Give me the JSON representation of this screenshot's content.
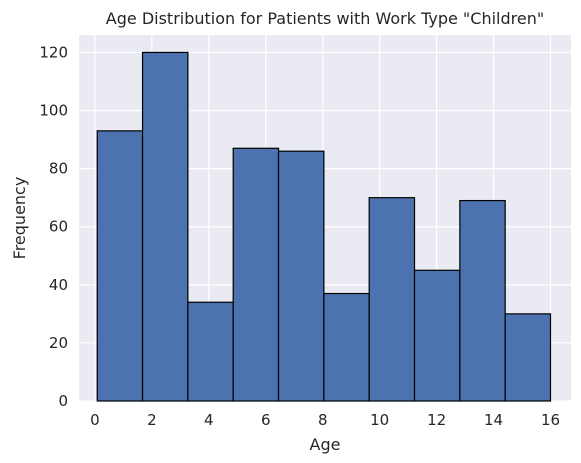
{
  "chart_data": {
    "type": "bar",
    "title": "Age Distribution for Patients with Work Type \"Children\"",
    "xlabel": "Age",
    "ylabel": "Frequency",
    "xlim": [
      -0.56,
      16.72
    ],
    "ylim": [
      0,
      126
    ],
    "xticks": [
      0,
      2,
      4,
      6,
      8,
      10,
      12,
      14,
      16
    ],
    "yticks": [
      0,
      20,
      40,
      60,
      80,
      100,
      120
    ],
    "bin_edges": [
      0.08,
      1.672,
      3.264,
      4.856,
      6.448,
      8.04,
      9.632,
      11.224,
      12.816,
      14.408,
      16.0
    ],
    "values": [
      93,
      120,
      34,
      87,
      86,
      37,
      70,
      45,
      69,
      30
    ],
    "grid": true,
    "colors": {
      "bar_fill": "#4c72b0",
      "bar_edge": "#000000",
      "plot_background": "#eaeaf2",
      "grid": "#ffffff"
    }
  }
}
